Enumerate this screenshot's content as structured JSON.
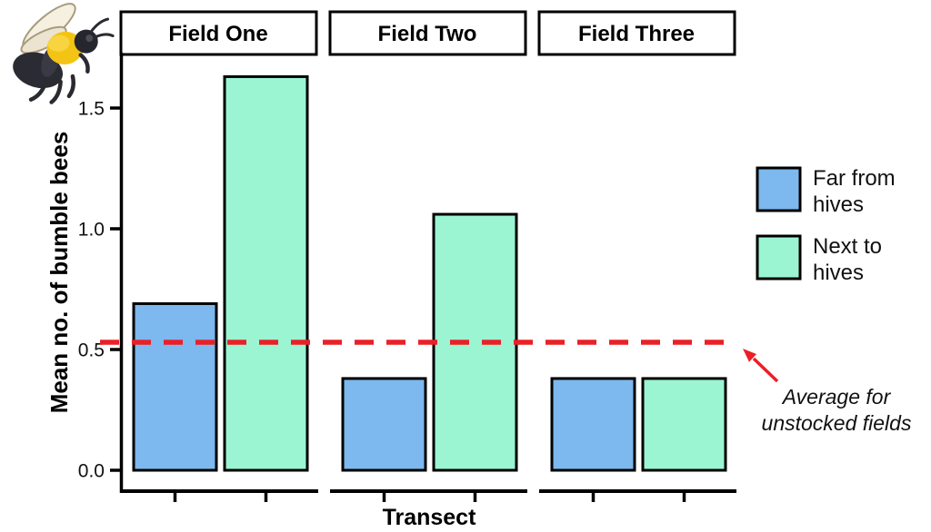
{
  "chart_data": {
    "type": "bar",
    "title": "",
    "facet_categories": [
      "Field One",
      "Field Two",
      "Field Three"
    ],
    "series": [
      {
        "name": "Far from hives",
        "color": "#7DB8EE",
        "values": [
          0.69,
          0.38,
          0.38
        ]
      },
      {
        "name": "Next to hives",
        "color": "#9BF5D2",
        "values": [
          1.63,
          1.06,
          0.38
        ]
      }
    ],
    "xlabel": "Transect",
    "ylabel": "Mean no. of bumble bees",
    "y_ticks": [
      "0.0",
      "0.5",
      "1.0",
      "1.5"
    ],
    "ylim": [
      0,
      1.75
    ],
    "grid": "off",
    "legend_position": "right",
    "bar_outline_color": "#000000",
    "reference_line": {
      "value": 0.53,
      "color": "#EB1F26",
      "style": "dashed",
      "label": "Average for unstocked fields"
    }
  },
  "facets": {
    "one": "Field One",
    "two": "Field Two",
    "three": "Field Three"
  },
  "axes": {
    "x_title": "Transect",
    "y_title": "Mean no. of bumble bees",
    "tick_0": "0.0",
    "tick_05": "0.5",
    "tick_10": "1.0",
    "tick_15": "1.5"
  },
  "legend": {
    "items": [
      {
        "line1": "Far from",
        "line2": "hives",
        "color": "#7DB8EE"
      },
      {
        "line1": "Next to",
        "line2": "hives",
        "color": "#9BF5D2"
      }
    ]
  },
  "annotation": {
    "line1": "Average for",
    "line2": "unstocked fields",
    "arrow_color": "#EB1F26"
  },
  "decorations": {
    "bee_icon": "bumble-bee-illustration"
  }
}
